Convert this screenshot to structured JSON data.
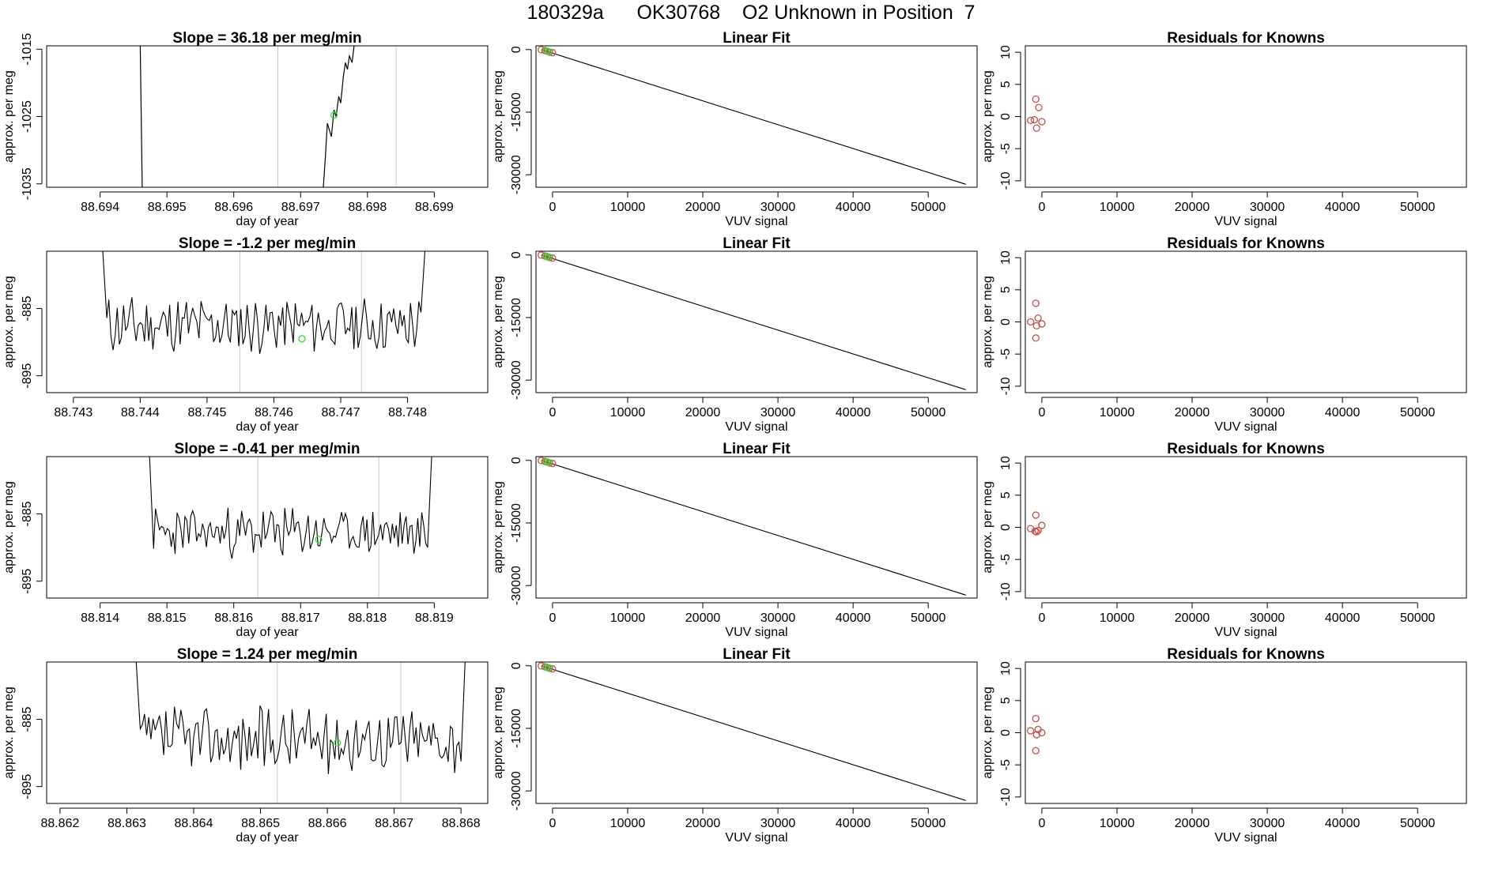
{
  "figure_title": "180329a      OK30768    O2 Unknown in Position  7",
  "colors": {
    "line": "#000000",
    "grid": "#c8c8c8",
    "marker_green": "#33dd33",
    "marker_red": "#c0504d"
  },
  "chart_data": [
    {
      "type": "line",
      "title": "Slope =  36.18  per meg/min",
      "xlabel": "day of year",
      "ylabel": "approx. per meg",
      "xlim": [
        88.6932,
        88.6998
      ],
      "ylim": [
        -1035.5,
        -1014.5
      ],
      "xticks": [
        "88.694",
        "88.695",
        "88.696",
        "88.697",
        "88.698",
        "88.699"
      ],
      "xtick_values": [
        88.694,
        88.695,
        88.696,
        88.697,
        88.698,
        88.699
      ],
      "yticks": [
        "-1015",
        "-1025",
        "-1035"
      ],
      "ytick_values": [
        -1015,
        -1025,
        -1035
      ],
      "vlines": [
        88.69666,
        88.69843
      ],
      "highlight": {
        "x": 88.6975,
        "y": -1024.8
      },
      "series": [
        {
          "x": [
            88.6946,
            88.69463
          ],
          "y": [
            -1014.5,
            -1035.5
          ]
        },
        {
          "x": [
            88.69734,
            88.69737,
            88.6974,
            88.69746,
            88.6975,
            88.69753,
            88.69757,
            88.6976,
            88.69764,
            88.69767,
            88.6977,
            88.69773,
            88.69777,
            88.6978
          ],
          "y": [
            -1035.5,
            -1031,
            -1026,
            -1028,
            -1024,
            -1025,
            -1022,
            -1023,
            -1019,
            -1017,
            -1018,
            -1016,
            -1017,
            -1014.5
          ]
        }
      ]
    },
    {
      "type": "scatter",
      "title": "Linear Fit",
      "xlabel": "VUV signal",
      "ylabel": "approx. per meg",
      "xlim": [
        -2200,
        56500
      ],
      "ylim": [
        -33000,
        900
      ],
      "xticks": [
        "0",
        "10000",
        "20000",
        "30000",
        "40000",
        "50000"
      ],
      "xtick_values": [
        0,
        10000,
        20000,
        30000,
        40000,
        50000
      ],
      "yticks": [
        "0",
        "-15000",
        "-30000"
      ],
      "ytick_values": [
        0,
        -15000,
        -30000
      ],
      "fit_line": {
        "x": [
          -1500,
          55000
        ],
        "y": [
          0,
          -32300
        ]
      },
      "points_red": [
        [
          -1500,
          -20
        ],
        [
          -1000,
          -250
        ],
        [
          -700,
          -400
        ],
        [
          -400,
          -600
        ],
        [
          0,
          -750
        ]
      ],
      "points_green": [
        [
          -800,
          -340
        ],
        [
          -500,
          -520
        ]
      ]
    },
    {
      "type": "scatter",
      "title": "Residuals for Knowns",
      "xlabel": "VUV signal",
      "ylabel": "approx. per meg",
      "xlim": [
        -2200,
        56500
      ],
      "ylim": [
        -11,
        11
      ],
      "xticks": [
        "0",
        "10000",
        "20000",
        "30000",
        "40000",
        "50000"
      ],
      "xtick_values": [
        0,
        10000,
        20000,
        30000,
        40000,
        50000
      ],
      "yticks": [
        "10",
        "5",
        "0",
        "-5",
        "-10"
      ],
      "ytick_values": [
        10,
        5,
        0,
        -5,
        -10
      ],
      "points_red": [
        [
          -1500,
          -0.6
        ],
        [
          -1000,
          -0.5
        ],
        [
          -800,
          2.7
        ],
        [
          -700,
          -1.8
        ],
        [
          -400,
          1.4
        ],
        [
          0,
          -0.8
        ]
      ]
    },
    {
      "type": "line",
      "title": "Slope =  -1.2  per meg/min",
      "xlabel": "day of year",
      "ylabel": "approx. per meg",
      "xlim": [
        88.7426,
        88.7492
      ],
      "ylim": [
        -897.5,
        -876.5
      ],
      "xticks": [
        "88.743",
        "88.744",
        "88.745",
        "88.746",
        "88.747",
        "88.748"
      ],
      "xtick_values": [
        88.743,
        88.744,
        88.745,
        88.746,
        88.747,
        88.748
      ],
      "yticks": [
        "-885",
        "-895"
      ],
      "ytick_values": [
        -885,
        -895
      ],
      "vlines": [
        88.74549,
        88.74731
      ],
      "highlight": {
        "x": 88.74642,
        "y": -889.5
      },
      "noise": {
        "x0": 88.7435,
        "x1": 88.7482,
        "center": -887.5,
        "amp": 3.6,
        "seed": 11,
        "n": 150,
        "edge_top": -876.5
      }
    },
    {
      "type": "scatter",
      "title": "Linear Fit",
      "xlabel": "VUV signal",
      "ylabel": "approx. per meg",
      "xlim": [
        -2200,
        56500
      ],
      "ylim": [
        -33000,
        900
      ],
      "xticks": [
        "0",
        "10000",
        "20000",
        "30000",
        "40000",
        "50000"
      ],
      "xtick_values": [
        0,
        10000,
        20000,
        30000,
        40000,
        50000
      ],
      "yticks": [
        "0",
        "-15000",
        "-30000"
      ],
      "ytick_values": [
        0,
        -15000,
        -30000
      ],
      "fit_line": {
        "x": [
          -1500,
          55000
        ],
        "y": [
          0,
          -32300
        ]
      },
      "points_red": [
        [
          -1500,
          -20
        ],
        [
          -1000,
          -250
        ],
        [
          -700,
          -400
        ],
        [
          -400,
          -600
        ],
        [
          0,
          -750
        ]
      ],
      "points_green": [
        [
          -800,
          -340
        ],
        [
          -500,
          -520
        ]
      ]
    },
    {
      "type": "scatter",
      "title": "Residuals for Knowns",
      "xlabel": "VUV signal",
      "ylabel": "approx. per meg",
      "xlim": [
        -2200,
        56500
      ],
      "ylim": [
        -11,
        11
      ],
      "xticks": [
        "0",
        "10000",
        "20000",
        "30000",
        "40000",
        "50000"
      ],
      "xtick_values": [
        0,
        10000,
        20000,
        30000,
        40000,
        50000
      ],
      "yticks": [
        "10",
        "5",
        "0",
        "-5",
        "-10"
      ],
      "ytick_values": [
        10,
        5,
        0,
        -5,
        -10
      ],
      "points_red": [
        [
          -1500,
          0
        ],
        [
          -800,
          2.9
        ],
        [
          -700,
          -0.6
        ],
        [
          -500,
          0.6
        ],
        [
          -800,
          -2.5
        ],
        [
          0,
          -0.3
        ]
      ]
    },
    {
      "type": "line",
      "title": "Slope =  -0.41  per meg/min",
      "xlabel": "day of year",
      "ylabel": "approx. per meg",
      "xlim": [
        88.8132,
        88.8198
      ],
      "ylim": [
        -897.5,
        -876.5
      ],
      "xticks": [
        "88.814",
        "88.815",
        "88.816",
        "88.817",
        "88.818",
        "88.819"
      ],
      "xtick_values": [
        88.814,
        88.815,
        88.816,
        88.817,
        88.818,
        88.819
      ],
      "yticks": [
        "-885",
        "-895"
      ],
      "ytick_values": [
        -885,
        -895
      ],
      "vlines": [
        88.81636,
        88.81817
      ],
      "highlight": {
        "x": 88.81727,
        "y": -888.8
      },
      "noise": {
        "x0": 88.8148,
        "x1": 88.8189,
        "center": -887.8,
        "amp": 3.2,
        "seed": 23,
        "n": 140,
        "edge_top": -876.5
      }
    },
    {
      "type": "scatter",
      "title": "Linear Fit",
      "xlabel": "VUV signal",
      "ylabel": "approx. per meg",
      "xlim": [
        -2200,
        56500
      ],
      "ylim": [
        -33000,
        900
      ],
      "xticks": [
        "0",
        "10000",
        "20000",
        "30000",
        "40000",
        "50000"
      ],
      "xtick_values": [
        0,
        10000,
        20000,
        30000,
        40000,
        50000
      ],
      "yticks": [
        "0",
        "-15000",
        "-30000"
      ],
      "ytick_values": [
        0,
        -15000,
        -30000
      ],
      "fit_line": {
        "x": [
          -1500,
          55000
        ],
        "y": [
          0,
          -32300
        ]
      },
      "points_red": [
        [
          -1500,
          -20
        ],
        [
          -1000,
          -250
        ],
        [
          -700,
          -400
        ],
        [
          -400,
          -600
        ],
        [
          0,
          -750
        ]
      ],
      "points_green": [
        [
          -800,
          -340
        ],
        [
          -500,
          -520
        ]
      ]
    },
    {
      "type": "scatter",
      "title": "Residuals for Knowns",
      "xlabel": "VUV signal",
      "ylabel": "approx. per meg",
      "xlim": [
        -2200,
        56500
      ],
      "ylim": [
        -11,
        11
      ],
      "xticks": [
        "0",
        "10000",
        "20000",
        "30000",
        "40000",
        "50000"
      ],
      "xtick_values": [
        0,
        10000,
        20000,
        30000,
        40000,
        50000
      ],
      "yticks": [
        "10",
        "5",
        "0",
        "-5",
        "-10"
      ],
      "ytick_values": [
        10,
        5,
        0,
        -5,
        -10
      ],
      "points_red": [
        [
          -1500,
          -0.2
        ],
        [
          -800,
          1.9
        ],
        [
          -700,
          -0.7
        ],
        [
          -500,
          -0.5
        ],
        [
          -900,
          -0.6
        ],
        [
          0,
          0.3
        ]
      ]
    },
    {
      "type": "line",
      "title": "Slope =  1.24  per meg/min",
      "xlabel": "day of year",
      "ylabel": "approx. per meg",
      "xlim": [
        88.8618,
        88.8684
      ],
      "ylim": [
        -897.5,
        -876.5
      ],
      "xticks": [
        "88.862",
        "88.863",
        "88.864",
        "88.865",
        "88.866",
        "88.867",
        "88.868"
      ],
      "xtick_values": [
        88.862,
        88.863,
        88.864,
        88.865,
        88.866,
        88.867,
        88.868
      ],
      "yticks": [
        "-885",
        "-895"
      ],
      "ytick_values": [
        -885,
        -895
      ],
      "vlines": [
        88.86525,
        88.8671
      ],
      "highlight": {
        "x": 88.86615,
        "y": -888.5
      },
      "noise": {
        "x0": 88.8632,
        "x1": 88.868,
        "center": -888,
        "amp": 4.2,
        "seed": 37,
        "n": 150,
        "edge_top": -876.5
      }
    },
    {
      "type": "scatter",
      "title": "Linear Fit",
      "xlabel": "VUV signal",
      "ylabel": "approx. per meg",
      "xlim": [
        -2200,
        56500
      ],
      "ylim": [
        -33000,
        900
      ],
      "xticks": [
        "0",
        "10000",
        "20000",
        "30000",
        "40000",
        "50000"
      ],
      "xtick_values": [
        0,
        10000,
        20000,
        30000,
        40000,
        50000
      ],
      "yticks": [
        "0",
        "-15000",
        "-30000"
      ],
      "ytick_values": [
        0,
        -15000,
        -30000
      ],
      "fit_line": {
        "x": [
          -1500,
          55000
        ],
        "y": [
          0,
          -32300
        ]
      },
      "points_red": [
        [
          -1500,
          -20
        ],
        [
          -1000,
          -250
        ],
        [
          -700,
          -400
        ],
        [
          -400,
          -600
        ],
        [
          0,
          -750
        ]
      ],
      "points_green": [
        [
          -800,
          -340
        ],
        [
          -500,
          -520
        ]
      ]
    },
    {
      "type": "scatter",
      "title": "Residuals for Knowns",
      "xlabel": "VUV signal",
      "ylabel": "approx. per meg",
      "xlim": [
        -2200,
        56500
      ],
      "ylim": [
        -11,
        11
      ],
      "xticks": [
        "0",
        "10000",
        "20000",
        "30000",
        "40000",
        "50000"
      ],
      "xtick_values": [
        0,
        10000,
        20000,
        30000,
        40000,
        50000
      ],
      "yticks": [
        "10",
        "5",
        "0",
        "-5",
        "-10"
      ],
      "ytick_values": [
        10,
        5,
        0,
        -5,
        -10
      ],
      "points_red": [
        [
          -1500,
          0.3
        ],
        [
          -800,
          2.2
        ],
        [
          -700,
          -0.3
        ],
        [
          -500,
          0.5
        ],
        [
          -800,
          -2.8
        ],
        [
          0,
          0
        ]
      ]
    }
  ]
}
